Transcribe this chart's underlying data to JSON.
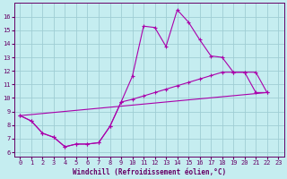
{
  "xlabel": "Windchill (Refroidissement éolien,°C)",
  "bg_color": "#c5edf0",
  "grid_color": "#9fcdd4",
  "line_color": "#aa00aa",
  "spine_color": "#660066",
  "yticks": [
    6,
    7,
    8,
    9,
    10,
    11,
    12,
    13,
    14,
    15,
    16
  ],
  "xticks": [
    0,
    1,
    2,
    3,
    4,
    5,
    6,
    7,
    8,
    9,
    10,
    11,
    12,
    13,
    14,
    15,
    16,
    17,
    18,
    19,
    20,
    21,
    22,
    23
  ],
  "xlim": [
    -0.5,
    23.5
  ],
  "ylim": [
    5.7,
    17.0
  ],
  "line1_x": [
    0,
    1,
    2,
    3,
    4,
    5,
    6,
    7,
    8,
    9,
    10,
    11,
    12,
    13,
    14,
    15,
    16,
    17,
    18,
    19,
    20,
    21,
    22
  ],
  "line1_y": [
    8.7,
    8.3,
    7.4,
    7.1,
    6.4,
    6.6,
    6.6,
    6.7,
    7.9,
    9.7,
    11.6,
    15.3,
    15.2,
    13.8,
    16.5,
    15.6,
    14.3,
    13.1,
    13.0,
    11.9,
    11.9,
    10.4,
    10.4
  ],
  "line2_x": [
    0,
    1,
    2,
    3,
    4,
    5,
    6,
    7,
    8,
    9,
    10,
    11,
    12,
    13,
    14,
    15,
    16,
    17,
    18,
    19,
    20,
    21,
    22
  ],
  "line2_y": [
    8.7,
    8.3,
    7.4,
    7.1,
    6.4,
    6.6,
    6.6,
    6.7,
    7.9,
    9.7,
    9.9,
    10.15,
    10.4,
    10.65,
    10.9,
    11.15,
    11.4,
    11.65,
    11.9,
    11.9,
    11.9,
    11.9,
    10.4
  ],
  "line3_x": [
    0,
    22
  ],
  "line3_y": [
    8.7,
    10.4
  ],
  "tick_labelsize": 5.0,
  "xlabel_fontsize": 5.5
}
